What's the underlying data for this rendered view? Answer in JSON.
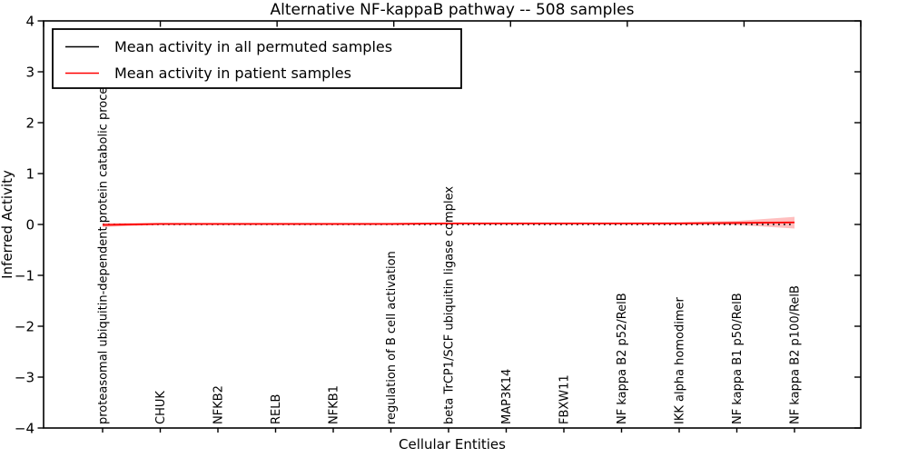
{
  "chart_data": {
    "type": "line",
    "title": "Alternative NF-kappaB pathway -- 508 samples",
    "xlabel": "Cellular Entities",
    "ylabel": "Inferred Activity",
    "ylim": [
      -4,
      4
    ],
    "yticks": [
      4,
      3,
      2,
      1,
      0,
      -1,
      -2,
      -3,
      -4
    ],
    "grid": false,
    "legend_position": "upper left",
    "categories": [
      "proteasomal ubiquitin-dependent protein catabolic process",
      "CHUK",
      "NFKB2",
      "RELB",
      "NFKB1",
      "regulation of B cell activation",
      "beta TrCP1/SCF ubiquitin ligase complex",
      "MAP3K14",
      "FBXW11",
      "NF kappa B2 p52/RelB",
      "IKK alpha homodimer",
      "NF kappa B1 p50/RelB",
      "NF kappa B2 p100/RelB"
    ],
    "series": [
      {
        "name": "Mean activity in all permuted samples",
        "color": "#000000",
        "style": "dotted",
        "values": [
          0,
          0,
          0,
          0,
          0,
          0,
          0,
          0,
          0,
          0,
          0,
          0,
          0
        ]
      },
      {
        "name": "Mean activity in patient samples",
        "color": "#ff0000",
        "style": "solid",
        "values": [
          -0.01,
          0.01,
          0.01,
          0.01,
          0.01,
          0.01,
          0.02,
          0.02,
          0.02,
          0.02,
          0.02,
          0.03,
          0.04
        ]
      }
    ],
    "band": {
      "series": "Mean activity in patient samples",
      "color": "#ff0000",
      "opacity": 0.25,
      "upper": [
        0.03,
        0.03,
        0.03,
        0.03,
        0.03,
        0.03,
        0.04,
        0.04,
        0.04,
        0.04,
        0.05,
        0.07,
        0.15
      ],
      "lower": [
        -0.05,
        -0.01,
        -0.01,
        -0.01,
        -0.01,
        -0.01,
        0.0,
        0.0,
        0.0,
        0.0,
        0.0,
        -0.01,
        -0.08
      ]
    }
  }
}
